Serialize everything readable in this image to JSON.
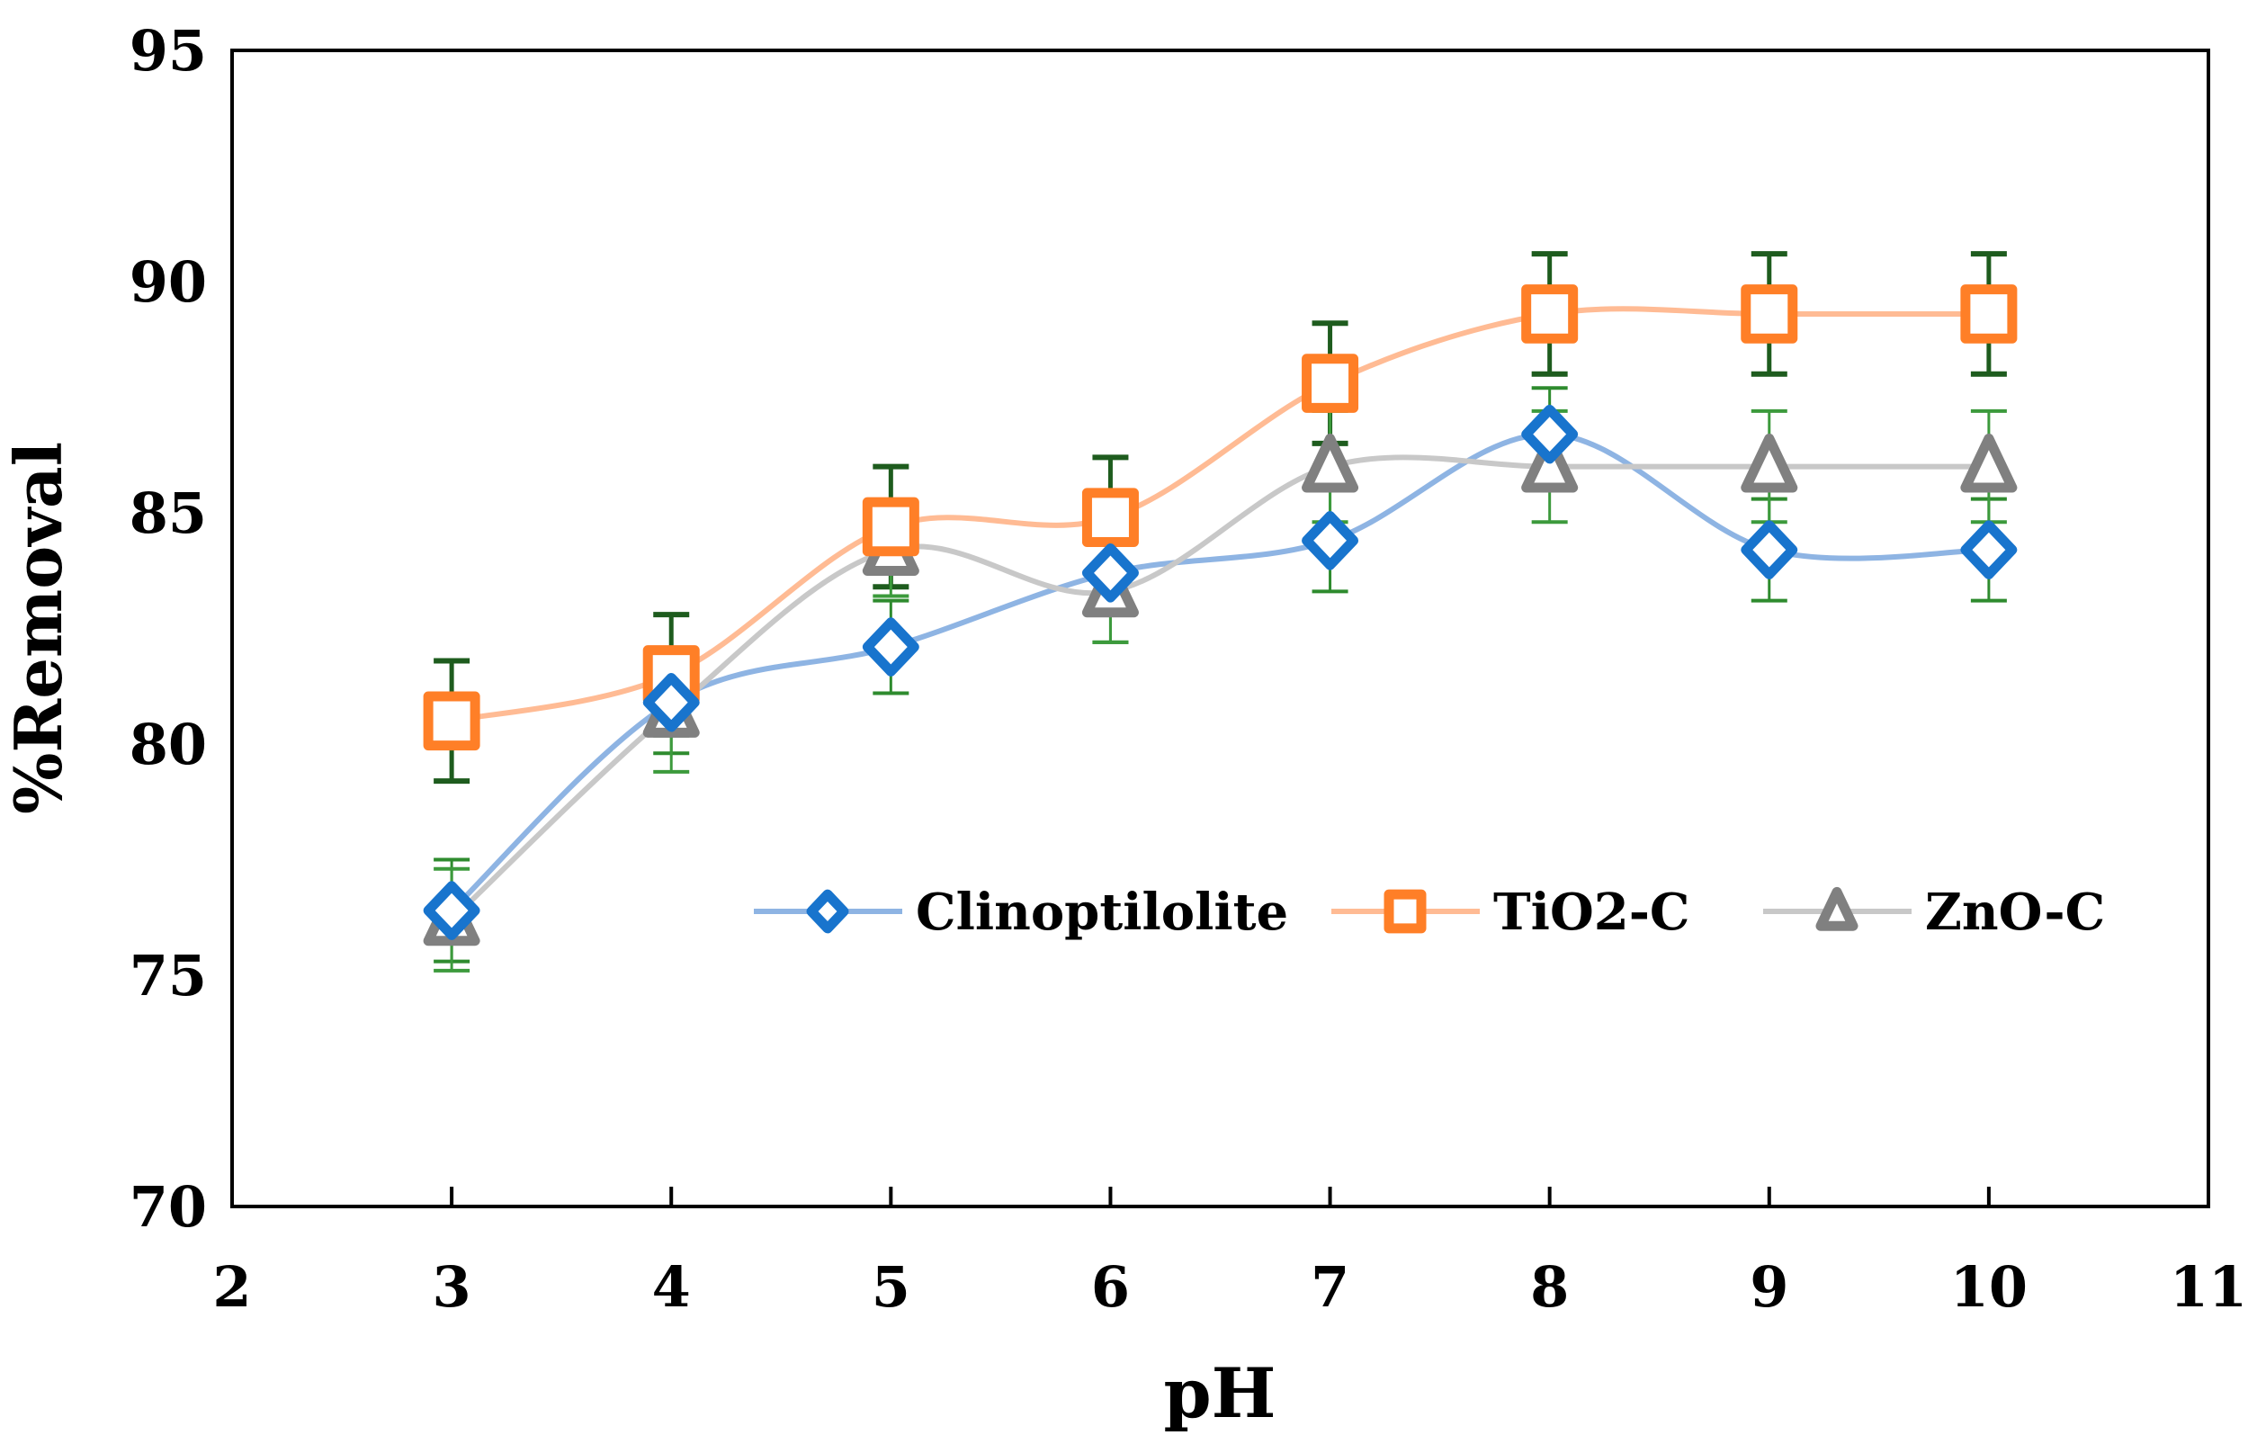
{
  "chart_data": {
    "type": "line",
    "title": "",
    "xlabel": "pH",
    "ylabel": "%Removal",
    "xlim": [
      2,
      11
    ],
    "ylim": [
      70,
      95
    ],
    "xticks": [
      2,
      3,
      4,
      5,
      6,
      7,
      8,
      9,
      10,
      11
    ],
    "yticks": [
      70,
      75,
      80,
      85,
      90,
      95
    ],
    "grid": false,
    "legend_placement": "lower-right",
    "x": [
      3,
      4,
      5,
      6,
      7,
      8,
      9,
      10
    ],
    "series": [
      {
        "name": "Clinoptilolite",
        "marker": "diamond",
        "color": "#1874CD",
        "line_color": "#8EB4E3",
        "values": [
          76.4,
          80.9,
          82.1,
          83.7,
          84.4,
          86.7,
          84.2,
          84.2
        ],
        "errors": [
          1.1,
          1.1,
          1.0,
          1.5,
          1.1,
          1.0,
          1.1,
          1.1
        ]
      },
      {
        "name": "TiO2-C",
        "marker": "square",
        "color": "#FF7F27",
        "line_color": "#FFBB94",
        "values": [
          80.5,
          81.5,
          84.7,
          84.9,
          87.8,
          89.3,
          89.3,
          89.3
        ],
        "errors": [
          1.3,
          1.3,
          1.3,
          1.3,
          1.3,
          1.3,
          1.3,
          1.3
        ]
      },
      {
        "name": "ZnO-C",
        "marker": "triangle",
        "color": "#808080",
        "line_color": "#C8C8C8",
        "values": [
          76.2,
          80.7,
          84.2,
          83.3,
          86.0,
          86.0,
          86.0,
          86.0
        ],
        "errors": [
          1.1,
          1.3,
          1.0,
          1.1,
          1.2,
          1.2,
          1.2,
          1.2
        ]
      }
    ],
    "error_bar_colors": [
      "#2E8B2E",
      "#1E5C1E",
      "#3C9A3C"
    ]
  }
}
